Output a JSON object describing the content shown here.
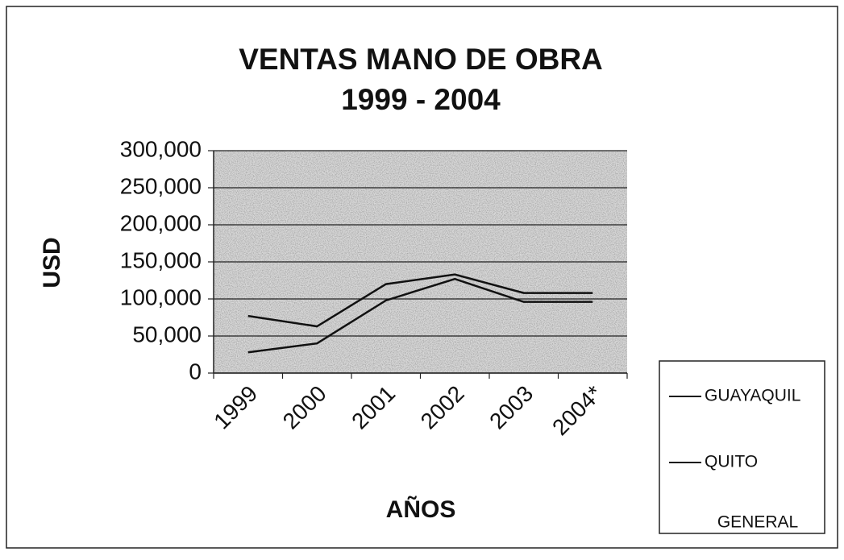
{
  "chart_data": {
    "type": "line",
    "title": "VENTAS MANO DE OBRA",
    "subtitle": "1999 - 2004",
    "x_label": "AÑOS",
    "y_label": "USD",
    "categories": [
      "1999",
      "2000",
      "2001",
      "2002",
      "2003",
      "2004*"
    ],
    "series": [
      {
        "name": "GUAYAQUIL",
        "color": "#111111",
        "values": [
          77000,
          63000,
          120000,
          133000,
          108000,
          108000
        ]
      },
      {
        "name": "QUITO",
        "color": "#111111",
        "values": [
          28000,
          40000,
          98000,
          127000,
          96000,
          96000
        ]
      },
      {
        "name": "GENERAL",
        "color": "none",
        "values": [
          null,
          null,
          null,
          null,
          null,
          null
        ]
      }
    ],
    "ylim": [
      0,
      300000
    ],
    "yticks": [
      0,
      {
        "value": 50000,
        "label": "50,000"
      },
      {
        "value": 100000,
        "label": "100,000"
      },
      {
        "value": 150000,
        "label": "150,000"
      },
      {
        "value": 200000,
        "label": "200,000"
      },
      {
        "value": 250000,
        "label": "250,000"
      },
      {
        "value": 300000,
        "label": "300,000"
      }
    ],
    "grid": true,
    "legend": "right"
  }
}
